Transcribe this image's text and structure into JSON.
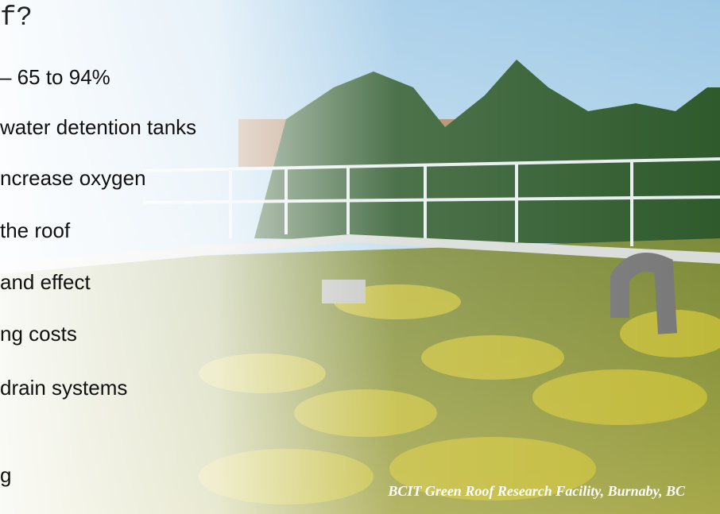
{
  "title": "f?",
  "lines": [
    "– 65 to 94%",
    "water detention tanks",
    "ncrease oxygen",
    "the roof",
    "and effect",
    "ng costs",
    "drain systems",
    "g"
  ],
  "caption": "BCIT Green Roof Research Facility, Burnaby, BC"
}
